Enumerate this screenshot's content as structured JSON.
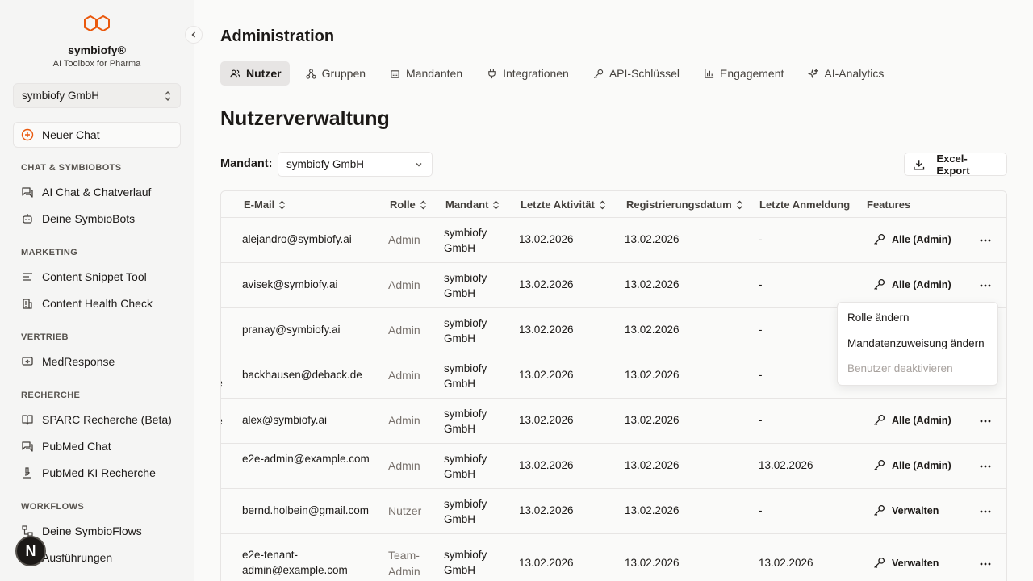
{
  "sidebar": {
    "brand_name": "symbiofy®",
    "brand_sub": "AI Toolbox for Pharma",
    "tenant": "symbiofy GmbH",
    "new_chat": "Neuer Chat",
    "sections": [
      {
        "label": "CHAT & SYMBIOBOTS",
        "items": [
          {
            "label": "AI Chat & Chatverlauf",
            "icon": "chat-icon"
          },
          {
            "label": "Deine SymbioBots",
            "icon": "bot-icon"
          }
        ]
      },
      {
        "label": "MARKETING",
        "items": [
          {
            "label": "Content Snippet Tool",
            "icon": "text-lines-icon"
          },
          {
            "label": "Content Health Check",
            "icon": "building-icon"
          }
        ]
      },
      {
        "label": "VERTRIEB",
        "items": [
          {
            "label": "MedResponse",
            "icon": "reply-icon"
          }
        ]
      },
      {
        "label": "RECHERCHE",
        "items": [
          {
            "label": "SPARC Recherche (Beta)",
            "icon": "book-icon"
          },
          {
            "label": "PubMed Chat",
            "icon": "chat-icon"
          },
          {
            "label": "PubMed KI Recherche",
            "icon": "microscope-icon"
          }
        ]
      },
      {
        "label": "WORKFLOWS",
        "items": [
          {
            "label": "Deine SymbioFlows",
            "icon": "workflow-icon"
          },
          {
            "label": "Ausführungen",
            "icon": "play-icon"
          }
        ]
      }
    ],
    "avatar_initial": "N"
  },
  "header": {
    "title": "Administration",
    "tabs": [
      {
        "label": "Nutzer",
        "icon": "users-icon",
        "active": true
      },
      {
        "label": "Gruppen",
        "icon": "group-icon"
      },
      {
        "label": "Mandanten",
        "icon": "building-icon"
      },
      {
        "label": "Integrationen",
        "icon": "plug-icon"
      },
      {
        "label": "API-Schlüssel",
        "icon": "key-icon"
      },
      {
        "label": "Engagement",
        "icon": "bar-chart-icon"
      },
      {
        "label": "AI-Analytics",
        "icon": "sparkles-icon"
      }
    ]
  },
  "main": {
    "section_title": "Nutzerverwaltung",
    "mandant_label": "Mandant:",
    "mandant_value": "symbiofy GmbH",
    "export_label": "Excel-Export"
  },
  "table": {
    "columns": {
      "email": "E-Mail",
      "role": "Rolle",
      "mandant": "Mandant",
      "last_activity": "Letzte Aktivität",
      "registration": "Registrierungsdatum",
      "last_login": "Letzte Anmeldung",
      "features": "Features"
    },
    "rows": [
      {
        "prefix": "",
        "email": "alejandro@symbiofy.ai",
        "role": "Admin",
        "mandant": "symbiofy GmbH",
        "last_activity": "13.02.2026",
        "registration": "13.02.2026",
        "last_login": "-",
        "features": "Alle (Admin)"
      },
      {
        "prefix": "",
        "email": "avisek@symbiofy.ai",
        "role": "Admin",
        "mandant": "symbiofy GmbH",
        "last_activity": "13.02.2026",
        "registration": "13.02.2026",
        "last_login": "-",
        "features": "Alle (Admin)"
      },
      {
        "prefix": "",
        "email": "pranay@symbiofy.ai",
        "role": "Admin",
        "mandant": "symbiofy GmbH",
        "last_activity": "13.02.2026",
        "registration": "13.02.2026",
        "last_login": "-",
        "features": ""
      },
      {
        "prefix": "e",
        "email": "backhausen@deback.de",
        "role": "Admin",
        "mandant": "symbiofy GmbH",
        "last_activity": "13.02.2026",
        "registration": "13.02.2026",
        "last_login": "-",
        "features": ""
      },
      {
        "prefix": "e",
        "email": "alex@symbiofy.ai",
        "role": "Admin",
        "mandant": "symbiofy GmbH",
        "last_activity": "13.02.2026",
        "registration": "13.02.2026",
        "last_login": "-",
        "features": "Alle (Admin)"
      },
      {
        "prefix": "",
        "email": "e2e-admin@example.com",
        "role": "Admin",
        "mandant": "symbiofy GmbH",
        "last_activity": "13.02.2026",
        "registration": "13.02.2026",
        "last_login": "13.02.2026",
        "features": "Alle (Admin)"
      },
      {
        "prefix": "",
        "email": "bernd.holbein@gmail.com",
        "role": "Nutzer",
        "mandant": "symbiofy GmbH",
        "last_activity": "13.02.2026",
        "registration": "13.02.2026",
        "last_login": "-",
        "features": "Verwalten"
      },
      {
        "prefix": "",
        "email": "e2e-tenant-admin@example.com",
        "role": "Team-Admin",
        "mandant": "symbiofy GmbH",
        "last_activity": "13.02.2026",
        "registration": "13.02.2026",
        "last_login": "13.02.2026",
        "features": "Verwalten"
      }
    ]
  },
  "menu": {
    "items": [
      {
        "label": "Rolle ändern",
        "disabled": false
      },
      {
        "label": "Mandatenzuweisung ändern",
        "disabled": false
      },
      {
        "label": "Benutzer deaktivieren",
        "disabled": true
      }
    ]
  },
  "colors": {
    "brand": "#ea580c",
    "muted": "#78716c",
    "disabled": "#a8a29e"
  }
}
